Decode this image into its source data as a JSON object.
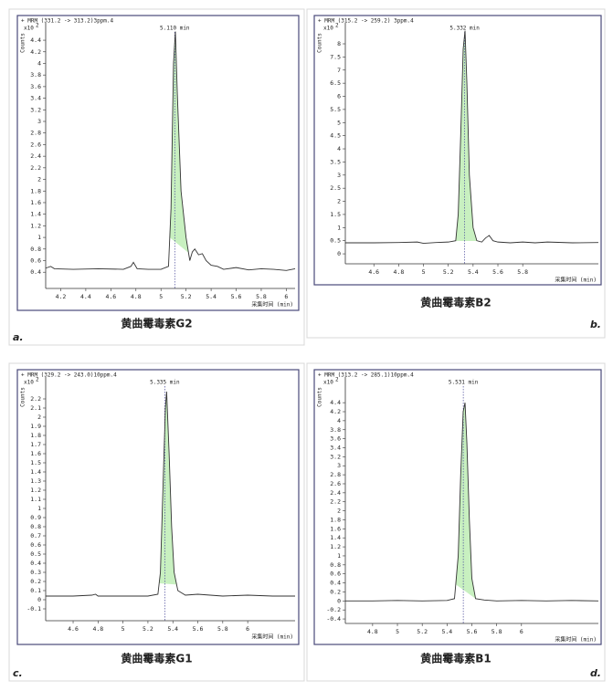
{
  "chart_data": [
    {
      "type": "line",
      "title": "+ MRM (331.2 -> 313.2)3ppm.4",
      "caption": "黄曲霉毒素G2",
      "panel_label": "a.",
      "ylabel": "Counts",
      "y_scale": "x10",
      "y_exponent": "2",
      "xlabel": "采集时间 (min)",
      "color": "#333333",
      "fill_color": "#c8f0c0",
      "x": [
        4.08,
        4.12,
        4.15,
        4.3,
        4.5,
        4.7,
        4.76,
        4.78,
        4.81,
        4.9,
        5.0,
        5.06,
        5.08,
        5.1,
        5.115,
        5.13,
        5.16,
        5.2,
        5.23,
        5.25,
        5.27,
        5.3,
        5.33,
        5.36,
        5.4,
        5.45,
        5.5,
        5.6,
        5.7,
        5.8,
        5.9,
        6.0,
        6.07
      ],
      "values": [
        0.47,
        0.5,
        0.46,
        0.45,
        0.46,
        0.45,
        0.5,
        0.57,
        0.46,
        0.45,
        0.45,
        0.5,
        1.5,
        4.0,
        4.55,
        3.5,
        1.8,
        1.0,
        0.6,
        0.75,
        0.8,
        0.7,
        0.72,
        0.6,
        0.52,
        0.5,
        0.45,
        0.48,
        0.44,
        0.46,
        0.45,
        0.43,
        0.46
      ],
      "integration": [
        5.07,
        5.22
      ],
      "marker": {
        "value": 5.11,
        "label": "5.110 min"
      },
      "xlim": [
        4.08,
        6.07
      ],
      "xticks": [
        4.2,
        4.4,
        4.6,
        4.8,
        5,
        5.2,
        5.4,
        5.6,
        5.8,
        6
      ],
      "ylim": [
        0.12,
        4.7
      ],
      "yticks": [
        0.4,
        0.6,
        0.8,
        1,
        1.2,
        1.4,
        1.6,
        1.8,
        2,
        2.2,
        2.4,
        2.6,
        2.8,
        3,
        3.2,
        3.4,
        3.6,
        3.8,
        4,
        4.2,
        4.4
      ]
    },
    {
      "type": "line",
      "title": "+ MRM (315.2 -> 259.2) 3ppm.4",
      "caption": "黄曲霉毒素B2",
      "panel_label": "b.",
      "ylabel": "Counts",
      "y_scale": "x10",
      "y_exponent": "2",
      "xlabel": "采集时间 (min)",
      "color": "#333333",
      "fill_color": "#c8f0c0",
      "x": [
        4.37,
        4.6,
        4.8,
        4.95,
        5.0,
        5.1,
        5.2,
        5.26,
        5.28,
        5.3,
        5.32,
        5.335,
        5.35,
        5.37,
        5.4,
        5.43,
        5.47,
        5.5,
        5.53,
        5.56,
        5.6,
        5.7,
        5.8,
        5.9,
        6.0,
        6.2,
        6.41
      ],
      "values": [
        0.42,
        0.42,
        0.43,
        0.45,
        0.4,
        0.43,
        0.45,
        0.5,
        1.5,
        4.5,
        7.8,
        8.5,
        6.5,
        3.0,
        1.0,
        0.5,
        0.45,
        0.6,
        0.7,
        0.5,
        0.45,
        0.42,
        0.45,
        0.42,
        0.45,
        0.42,
        0.43
      ],
      "integration": [
        5.25,
        5.44
      ],
      "marker": {
        "value": 5.332,
        "label": "5.332 min"
      },
      "xlim": [
        4.37,
        6.41
      ],
      "xticks": [
        4.6,
        4.8,
        5,
        5.2,
        5.4,
        5.6,
        5.8
      ],
      "ylim": [
        -0.38,
        8.8
      ],
      "yticks": [
        0,
        0.5,
        1,
        1.5,
        2,
        2.5,
        3,
        3.5,
        4,
        4.5,
        5,
        5.5,
        6,
        6.5,
        7,
        7.5,
        8
      ]
    },
    {
      "type": "line",
      "title": "+ MRM (329.2 -> 243.0)10ppm.4",
      "caption": "黄曲霉毒素G1",
      "panel_label": "c.",
      "ylabel": "Counts",
      "y_scale": "x10",
      "y_exponent": "2",
      "xlabel": "采集时间 (min)",
      "color": "#333333",
      "fill_color": "#c8f0c0",
      "x": [
        4.38,
        4.6,
        4.75,
        4.78,
        4.8,
        5.0,
        5.2,
        5.28,
        5.3,
        5.32,
        5.34,
        5.35,
        5.37,
        5.39,
        5.41,
        5.44,
        5.5,
        5.6,
        5.7,
        5.8,
        6.0,
        6.2,
        6.38
      ],
      "values": [
        0.04,
        0.04,
        0.05,
        0.06,
        0.04,
        0.04,
        0.04,
        0.06,
        0.3,
        1.2,
        2.1,
        2.28,
        1.6,
        0.8,
        0.3,
        0.1,
        0.05,
        0.06,
        0.05,
        0.04,
        0.05,
        0.04,
        0.04
      ],
      "integration": [
        5.29,
        5.43
      ],
      "marker": {
        "value": 5.335,
        "label": "5.335 min"
      },
      "xlim": [
        4.38,
        6.38
      ],
      "xticks": [
        4.6,
        4.8,
        5,
        5.2,
        5.4,
        5.6,
        5.8,
        6
      ],
      "ylim": [
        -0.23,
        2.44
      ],
      "yticks": [
        -0.1,
        0,
        0.1,
        0.2,
        0.3,
        0.4,
        0.5,
        0.6,
        0.7,
        0.8,
        0.9,
        1,
        1.1,
        1.2,
        1.3,
        1.4,
        1.5,
        1.6,
        1.7,
        1.8,
        1.9,
        2,
        2.1,
        2.2
      ]
    },
    {
      "type": "line",
      "title": "+ MRM (313.2 -> 285.1)10ppm.4",
      "caption": "黄曲霉毒素B1",
      "panel_label": "d.",
      "ylabel": "Counts",
      "y_scale": "x10",
      "y_exponent": "2",
      "xlabel": "采集时间 (min)",
      "color": "#333333",
      "fill_color": "#c8f0c0",
      "x": [
        4.58,
        4.8,
        5.0,
        5.2,
        5.4,
        5.46,
        5.49,
        5.51,
        5.53,
        5.545,
        5.56,
        5.58,
        5.6,
        5.63,
        5.7,
        5.8,
        6.0,
        6.2,
        6.4,
        6.62
      ],
      "values": [
        0.0,
        0.0,
        0.01,
        0.0,
        0.01,
        0.05,
        1.0,
        2.8,
        4.2,
        4.4,
        3.5,
        1.8,
        0.5,
        0.05,
        0.02,
        0.0,
        0.01,
        0.0,
        0.01,
        0.0
      ],
      "integration": [
        5.47,
        5.63
      ],
      "marker": {
        "value": 5.531,
        "label": "5.531 min"
      },
      "xlim": [
        4.58,
        6.62
      ],
      "xticks": [
        4.8,
        5,
        5.2,
        5.4,
        5.6,
        5.8,
        6
      ],
      "ylim": [
        -0.5,
        4.97
      ],
      "yticks": [
        -0.4,
        -0.2,
        0,
        0.2,
        0.4,
        0.6,
        0.8,
        1,
        1.2,
        1.4,
        1.6,
        1.8,
        2,
        2.2,
        2.4,
        2.6,
        2.8,
        3,
        3.2,
        3.4,
        3.6,
        3.8,
        4,
        4.2,
        4.4
      ]
    }
  ]
}
